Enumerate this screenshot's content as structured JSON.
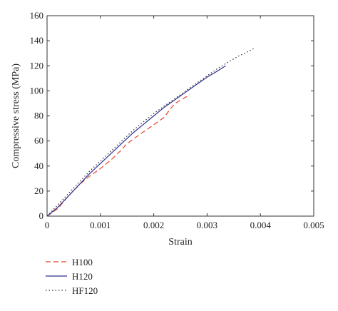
{
  "chart_data": {
    "type": "line",
    "title": "",
    "xlabel": "Strain",
    "ylabel": "Compressive stress (MPa)",
    "xlim": [
      0,
      0.005
    ],
    "ylim": [
      0,
      160
    ],
    "xticks": [
      "0",
      "0.001",
      "0.002",
      "0.003",
      "0.004",
      "0.005"
    ],
    "yticks": [
      "0",
      "20",
      "40",
      "60",
      "80",
      "100",
      "120",
      "140",
      "160"
    ],
    "grid": false,
    "legend_position": "bottom-left",
    "series": [
      {
        "name": "H100",
        "color": "#e8452c",
        "style": "dashed",
        "points": [
          [
            0,
            0
          ],
          [
            0.0002,
            6
          ],
          [
            0.0004,
            16
          ],
          [
            0.0006,
            25
          ],
          [
            0.0008,
            32
          ],
          [
            0.001,
            38
          ],
          [
            0.0012,
            45
          ],
          [
            0.0014,
            53
          ],
          [
            0.0015,
            58
          ],
          [
            0.0016,
            61
          ],
          [
            0.0018,
            67
          ],
          [
            0.002,
            73
          ],
          [
            0.0022,
            79
          ],
          [
            0.0023,
            85
          ],
          [
            0.0024,
            90
          ],
          [
            0.0026,
            95
          ],
          [
            0.00267,
            97
          ]
        ]
      },
      {
        "name": "H120",
        "color": "#2c2f8f",
        "style": "solid",
        "points": [
          [
            0,
            0
          ],
          [
            0.0002,
            7
          ],
          [
            0.0004,
            16
          ],
          [
            0.0006,
            25
          ],
          [
            0.0008,
            34
          ],
          [
            0.001,
            42
          ],
          [
            0.0012,
            50
          ],
          [
            0.0014,
            58
          ],
          [
            0.0016,
            66
          ],
          [
            0.0018,
            73
          ],
          [
            0.002,
            80
          ],
          [
            0.0022,
            87
          ],
          [
            0.0024,
            93
          ],
          [
            0.0026,
            99
          ],
          [
            0.0028,
            105
          ],
          [
            0.003,
            111
          ],
          [
            0.0032,
            116
          ],
          [
            0.00335,
            120
          ]
        ]
      },
      {
        "name": "HF120",
        "color": "#333333",
        "style": "dotted",
        "points": [
          [
            0,
            0
          ],
          [
            0.0002,
            9
          ],
          [
            0.0004,
            18
          ],
          [
            0.0006,
            27
          ],
          [
            0.0008,
            36
          ],
          [
            0.001,
            44
          ],
          [
            0.0012,
            52
          ],
          [
            0.0014,
            60
          ],
          [
            0.0016,
            68
          ],
          [
            0.0018,
            75
          ],
          [
            0.002,
            82
          ],
          [
            0.0022,
            88
          ],
          [
            0.0024,
            94
          ],
          [
            0.0026,
            100
          ],
          [
            0.0028,
            106
          ],
          [
            0.003,
            112
          ],
          [
            0.0032,
            118
          ],
          [
            0.0034,
            123
          ],
          [
            0.0036,
            128
          ],
          [
            0.0038,
            132
          ],
          [
            0.00388,
            134
          ]
        ]
      }
    ]
  }
}
